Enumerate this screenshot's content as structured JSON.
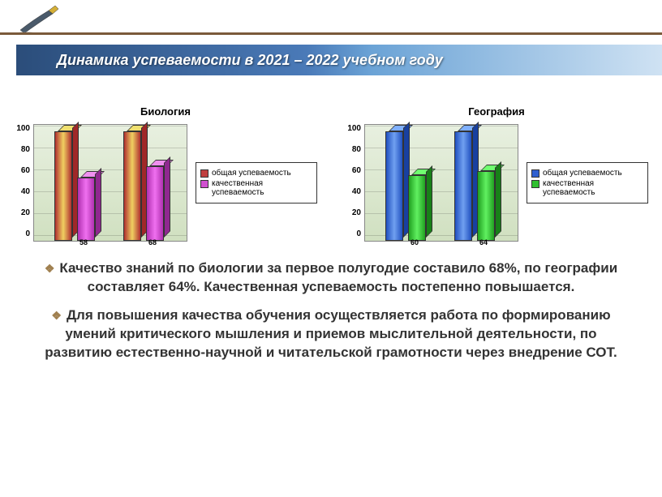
{
  "header": {
    "title": "Динамика успеваемости  в 2021 – 2022 учебном году"
  },
  "chart_left": {
    "type": "bar",
    "title": "Биология",
    "ylim": [
      0,
      100
    ],
    "ytick_step": 20,
    "yticks": [
      "100",
      "80",
      "60",
      "40",
      "20",
      "0"
    ],
    "background_gradient": [
      "#e8f0e0",
      "#d0e0c0"
    ],
    "grid_color": "#bbbbbb",
    "groups": [
      {
        "bars": [
          {
            "value": 100,
            "color_front": "linear-gradient(to right,#b03030,#f0d060,#b03030)",
            "color_top": "#f0e070",
            "color_side": "#a02828"
          },
          {
            "value": 58,
            "label": "58",
            "color_front": "linear-gradient(to right,#b030b0,#f070f0,#b030b0)",
            "color_top": "#f090f0",
            "color_side": "#902890"
          }
        ]
      },
      {
        "bars": [
          {
            "value": 100,
            "color_front": "linear-gradient(to right,#b03030,#f0d060,#b03030)",
            "color_top": "#f0e070",
            "color_side": "#a02828"
          },
          {
            "value": 68,
            "label": "68",
            "color_front": "linear-gradient(to right,#b030b0,#f070f0,#b030b0)",
            "color_top": "#f090f0",
            "color_side": "#902890"
          }
        ]
      }
    ],
    "legend": [
      {
        "swatch": "#c04040",
        "label": "общая успеваемость"
      },
      {
        "swatch": "#d050d0",
        "label": "качественная успеваемость"
      }
    ]
  },
  "chart_right": {
    "type": "bar",
    "title": "География",
    "ylim": [
      0,
      100
    ],
    "ytick_step": 20,
    "yticks": [
      "100",
      "80",
      "60",
      "40",
      "20",
      "0"
    ],
    "background_gradient": [
      "#e8f0e0",
      "#d0e0c0"
    ],
    "grid_color": "#bbbbbb",
    "groups": [
      {
        "bars": [
          {
            "value": 100,
            "color_front": "linear-gradient(to right,#2050c0,#70a0f0,#2050c0)",
            "color_top": "#80b0ff",
            "color_side": "#1840a0"
          },
          {
            "value": 60,
            "label": "60",
            "color_front": "linear-gradient(to right,#20a020,#60f060,#20a020)",
            "color_top": "#70ff70",
            "color_side": "#188018"
          }
        ]
      },
      {
        "bars": [
          {
            "value": 100,
            "color_front": "linear-gradient(to right,#2050c0,#70a0f0,#2050c0)",
            "color_top": "#80b0ff",
            "color_side": "#1840a0"
          },
          {
            "value": 64,
            "label": "64",
            "color_front": "linear-gradient(to right,#20a020,#60f060,#20a020)",
            "color_top": "#70ff70",
            "color_side": "#188018"
          }
        ]
      }
    ],
    "legend": [
      {
        "swatch": "#3060d0",
        "label": "общая успеваемость"
      },
      {
        "swatch": "#30c030",
        "label": "качественная успеваемость"
      }
    ]
  },
  "bullets": [
    "Качество знаний по биологии за первое полугодие составило 68%, по географии составляет 64%. Качественная успеваемость постепенно повышается.",
    "Для повышения качества обучения осуществляется работа по формированию умений критического мышления и приемов мыслительной деятельности, по развитию естественно-научной и читательской грамотности через внедрение СОТ."
  ]
}
